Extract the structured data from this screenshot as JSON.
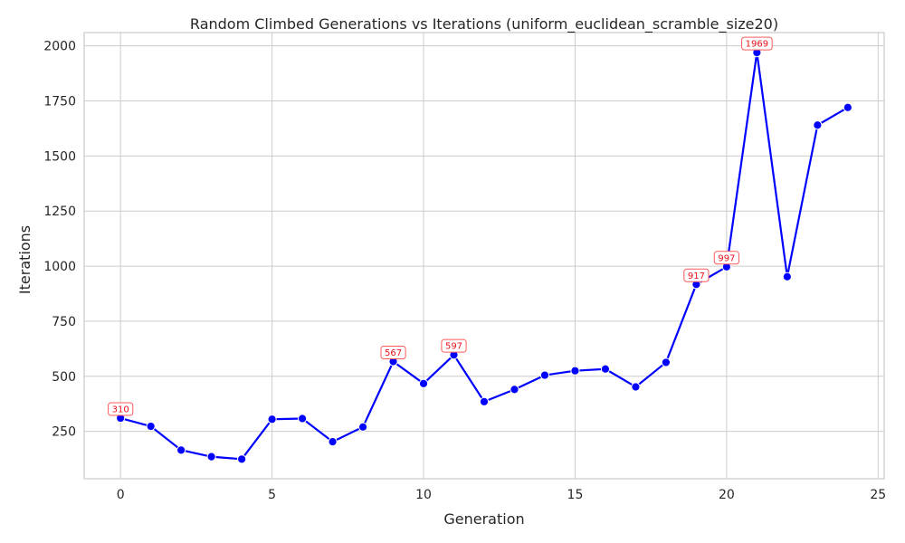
{
  "chart_data": {
    "type": "line",
    "title": "Random Climbed Generations vs Iterations (uniform_euclidean_scramble_size20)",
    "xlabel": "Generation",
    "ylabel": "Iterations",
    "xlim": [
      -1.2,
      25.2
    ],
    "ylim": [
      35,
      2060
    ],
    "xticks": [
      0,
      5,
      10,
      15,
      20,
      25
    ],
    "yticks": [
      250,
      500,
      750,
      1000,
      1250,
      1500,
      1750,
      2000
    ],
    "grid": true,
    "line_color": "#0000ff",
    "annotation_color": "#e8111a",
    "series": [
      {
        "x": [
          0,
          1,
          2,
          3,
          4,
          5,
          6,
          7,
          8,
          9,
          10,
          11,
          12,
          13,
          14,
          15,
          16,
          17,
          18,
          19,
          20,
          21,
          22,
          23,
          24
        ],
        "values": [
          310,
          273,
          165,
          135,
          124,
          305,
          308,
          203,
          270,
          567,
          467,
          597,
          385,
          440,
          505,
          525,
          533,
          452,
          563,
          917,
          997,
          1969,
          952,
          1640,
          1720
        ]
      }
    ],
    "annotations": [
      {
        "x": 0,
        "y": 310,
        "text": "310"
      },
      {
        "x": 9,
        "y": 567,
        "text": "567"
      },
      {
        "x": 11,
        "y": 597,
        "text": "597"
      },
      {
        "x": 19,
        "y": 917,
        "text": "917"
      },
      {
        "x": 20,
        "y": 997,
        "text": "997"
      },
      {
        "x": 21,
        "y": 1969,
        "text": "1969"
      }
    ]
  }
}
